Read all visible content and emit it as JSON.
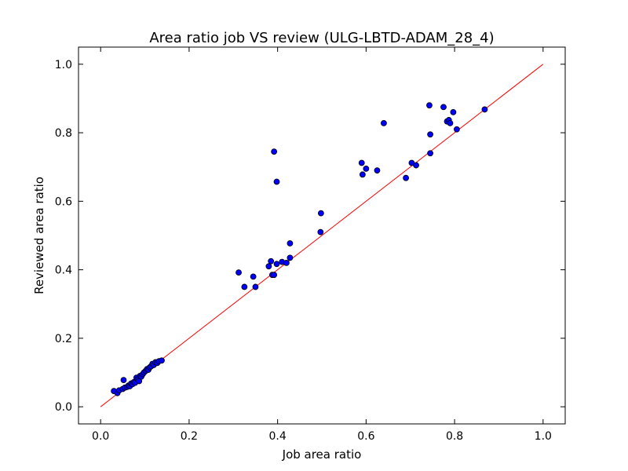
{
  "chart_data": {
    "type": "scatter",
    "title": "Area ratio job VS review (ULG-LBTD-ADAM_28_4)",
    "xlabel": "Job area ratio",
    "ylabel": "Reviewed area ratio",
    "xlim": [
      -0.05,
      1.05
    ],
    "ylim": [
      -0.05,
      1.05
    ],
    "xticks": [
      "0.0",
      "0.2",
      "0.4",
      "0.6",
      "0.8",
      "1.0"
    ],
    "yticks": [
      "0.0",
      "0.2",
      "0.4",
      "0.6",
      "0.8",
      "1.0"
    ],
    "grid": false,
    "colors": {
      "points": "#0000ff",
      "point_edge": "#000000",
      "reference_line": "#ff0000"
    },
    "reference_line": {
      "x": [
        0.0,
        1.0
      ],
      "y": [
        0.0,
        1.0
      ]
    },
    "points": [
      [
        0.03,
        0.046
      ],
      [
        0.038,
        0.04
      ],
      [
        0.042,
        0.048
      ],
      [
        0.05,
        0.052
      ],
      [
        0.052,
        0.078
      ],
      [
        0.055,
        0.056
      ],
      [
        0.06,
        0.058
      ],
      [
        0.063,
        0.062
      ],
      [
        0.066,
        0.06
      ],
      [
        0.069,
        0.068
      ],
      [
        0.072,
        0.066
      ],
      [
        0.075,
        0.072
      ],
      [
        0.078,
        0.07
      ],
      [
        0.081,
        0.085
      ],
      [
        0.084,
        0.08
      ],
      [
        0.087,
        0.075
      ],
      [
        0.089,
        0.09
      ],
      [
        0.092,
        0.088
      ],
      [
        0.095,
        0.095
      ],
      [
        0.098,
        0.1
      ],
      [
        0.102,
        0.105
      ],
      [
        0.105,
        0.11
      ],
      [
        0.108,
        0.108
      ],
      [
        0.111,
        0.115
      ],
      [
        0.114,
        0.118
      ],
      [
        0.117,
        0.125
      ],
      [
        0.12,
        0.122
      ],
      [
        0.124,
        0.13
      ],
      [
        0.128,
        0.128
      ],
      [
        0.132,
        0.133
      ],
      [
        0.138,
        0.135
      ],
      [
        0.312,
        0.392
      ],
      [
        0.325,
        0.35
      ],
      [
        0.345,
        0.38
      ],
      [
        0.35,
        0.35
      ],
      [
        0.38,
        0.41
      ],
      [
        0.385,
        0.425
      ],
      [
        0.388,
        0.385
      ],
      [
        0.392,
        0.385
      ],
      [
        0.392,
        0.745
      ],
      [
        0.398,
        0.657
      ],
      [
        0.398,
        0.417
      ],
      [
        0.41,
        0.423
      ],
      [
        0.42,
        0.42
      ],
      [
        0.428,
        0.477
      ],
      [
        0.428,
        0.435
      ],
      [
        0.497,
        0.51
      ],
      [
        0.498,
        0.565
      ],
      [
        0.59,
        0.712
      ],
      [
        0.592,
        0.678
      ],
      [
        0.6,
        0.695
      ],
      [
        0.625,
        0.69
      ],
      [
        0.64,
        0.828
      ],
      [
        0.69,
        0.668
      ],
      [
        0.703,
        0.712
      ],
      [
        0.713,
        0.705
      ],
      [
        0.743,
        0.88
      ],
      [
        0.745,
        0.795
      ],
      [
        0.745,
        0.74
      ],
      [
        0.775,
        0.875
      ],
      [
        0.783,
        0.833
      ],
      [
        0.787,
        0.837
      ],
      [
        0.79,
        0.828
      ],
      [
        0.797,
        0.86
      ],
      [
        0.805,
        0.81
      ],
      [
        0.868,
        0.868
      ]
    ]
  }
}
